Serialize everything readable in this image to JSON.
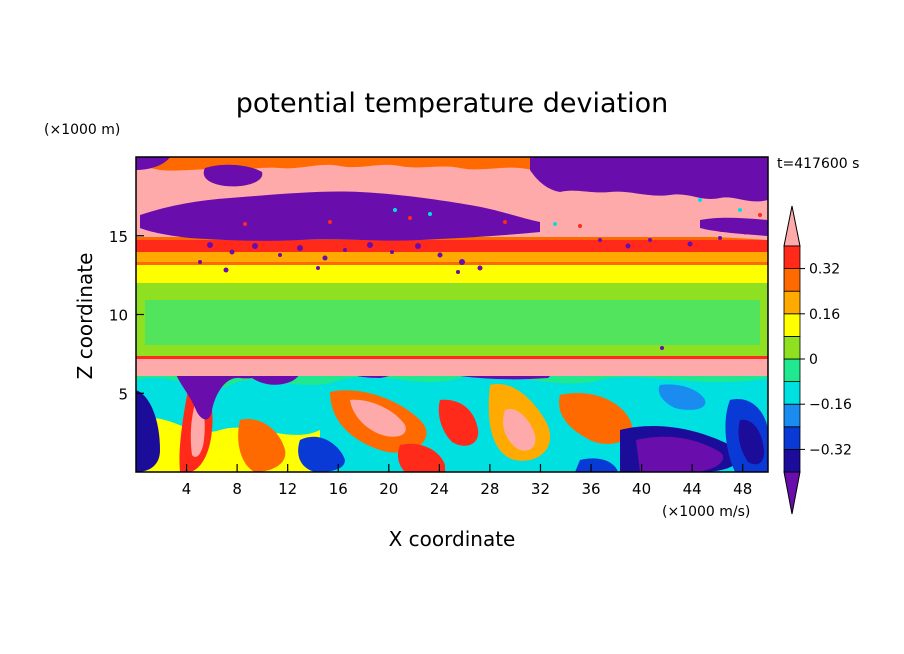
{
  "chart_data": {
    "type": "heatmap",
    "title": "potential temperature deviation",
    "xlabel": "X coordinate",
    "ylabel": "Z coordinate",
    "x_unit": "(×1000 m/s)",
    "y_unit": "(×1000 m)",
    "time_label": "t=417600 s",
    "xlim": [
      0,
      50
    ],
    "ylim": [
      0,
      20
    ],
    "x_ticks": [
      4,
      8,
      12,
      16,
      20,
      24,
      28,
      32,
      36,
      40,
      44,
      48
    ],
    "y_ticks": [
      5,
      10,
      15
    ],
    "colorbar": {
      "levels": [
        -0.4,
        -0.32,
        -0.24,
        -0.16,
        -0.08,
        0,
        0.08,
        0.16,
        0.24,
        0.32,
        0.4
      ],
      "labeled_ticks": [
        "0.32",
        "0.16",
        "0",
        "−0.16",
        "−0.32"
      ],
      "colors": [
        "#6a0dad",
        "#1c0c9a",
        "#0a3ad6",
        "#1a8cf0",
        "#00e0e0",
        "#20e890",
        "#8ee020",
        "#ffff00",
        "#ffaa00",
        "#ff6a00",
        "#ff2a1a",
        "#ffaaaa"
      ]
    },
    "bands": [
      {
        "z": [
          0,
          7.2
        ],
        "description": "turbulent mixed layer"
      },
      {
        "z": [
          7.2,
          13
        ],
        "value_approx": 0.04
      },
      {
        "z": [
          13,
          14.5
        ],
        "value_approx": 0.3
      },
      {
        "z": [
          14.5,
          20
        ],
        "description": "pink and purple patches"
      }
    ]
  }
}
